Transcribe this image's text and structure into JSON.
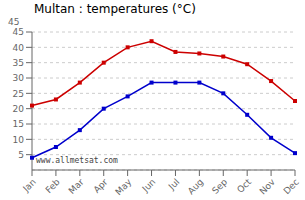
{
  "chart_data": {
    "type": "line",
    "title": "Multan : temperatures (°C)",
    "categories": [
      "Jan",
      "Feb",
      "Mar",
      "Apr",
      "May",
      "Jun",
      "Jul",
      "Aug",
      "Sep",
      "Oct",
      "Nov",
      "Dec"
    ],
    "series": [
      {
        "color": "#cc0000",
        "marker": "square",
        "values": [
          21,
          23,
          28.5,
          35,
          40,
          42,
          38.5,
          38,
          37,
          34.5,
          29,
          22.5
        ]
      },
      {
        "color": "#0000cc",
        "marker": "square",
        "values": [
          4,
          7.5,
          13,
          20,
          24,
          28.5,
          28.5,
          28.5,
          25,
          18,
          10.5,
          5.5
        ]
      }
    ],
    "ylim": [
      0,
      45
    ],
    "yticks": [
      5,
      10,
      15,
      20,
      25,
      30,
      35,
      40,
      45
    ],
    "grid": true,
    "annotations": [
      "45",
      "www.allmetsat.com"
    ]
  }
}
